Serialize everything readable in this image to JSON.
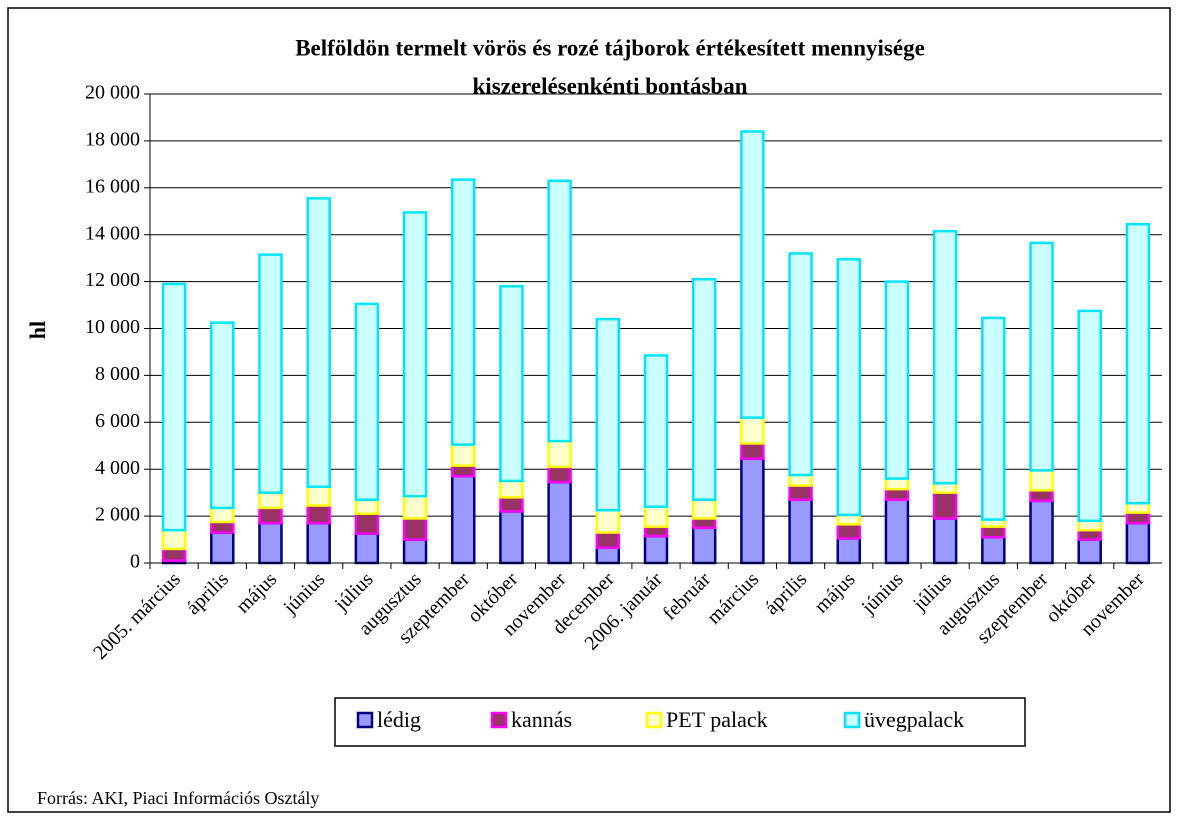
{
  "chart_data": {
    "type": "stacked_bar",
    "title": [
      "Belföldön termelt vörös és rozé tájborok értékesített mennyisége",
      "kiszerelésenkénti bontásban"
    ],
    "y_label": "hl",
    "source": "Forrás: AKI, Piaci Információs Osztály",
    "categories": [
      "2005. március",
      "április",
      "május",
      "június",
      "július",
      "augusztus",
      "szeptember",
      "október",
      "november",
      "december",
      "2006. január",
      "február",
      "március",
      "április",
      "május",
      "június",
      "július",
      "augusztus",
      "szeptember",
      "október",
      "november"
    ],
    "series": [
      {
        "name": "lédig",
        "color": "#9999ff",
        "edge": "#000080",
        "values": [
          100,
          1300,
          1700,
          1700,
          1250,
          1000,
          3700,
          2200,
          3450,
          650,
          1150,
          1500,
          4450,
          2700,
          1050,
          2700,
          1900,
          1100,
          2650,
          1000,
          1700
        ]
      },
      {
        "name": "kannás",
        "color": "#993366",
        "edge": "#ff00ff",
        "values": [
          500,
          450,
          650,
          750,
          850,
          900,
          450,
          600,
          650,
          650,
          400,
          400,
          650,
          600,
          600,
          450,
          1100,
          450,
          450,
          400,
          450
        ]
      },
      {
        "name": "PET palack",
        "color": "#ffffcc",
        "edge": "#ffff00",
        "values": [
          800,
          600,
          650,
          800,
          600,
          950,
          900,
          700,
          1100,
          950,
          850,
          800,
          1100,
          450,
          400,
          450,
          400,
          300,
          850,
          400,
          400
        ]
      },
      {
        "name": "üvegpalack",
        "color": "#ccffff",
        "edge": "#00e5ff",
        "values": [
          10500,
          7900,
          10150,
          12300,
          8350,
          12100,
          11300,
          8300,
          11100,
          8150,
          6450,
          9400,
          12200,
          9450,
          10900,
          8400,
          10750,
          8600,
          9700,
          8950,
          11900
        ]
      }
    ],
    "ylim": [
      0,
      20000
    ],
    "yticks": [
      0,
      {
        "value": 2000,
        "label": "2 000"
      },
      {
        "value": 4000,
        "label": "4 000"
      },
      {
        "value": 6000,
        "label": "6 000"
      },
      {
        "value": 8000,
        "label": "8 000"
      },
      {
        "value": 10000,
        "label": "10 000"
      },
      {
        "value": 12000,
        "label": "12 000"
      },
      {
        "value": 14000,
        "label": "14 000"
      },
      {
        "value": 16000,
        "label": "16 000"
      },
      {
        "value": 18000,
        "label": "18 000"
      },
      {
        "value": 20000,
        "label": "20 000"
      }
    ],
    "grid": true,
    "legend": "bottom"
  }
}
